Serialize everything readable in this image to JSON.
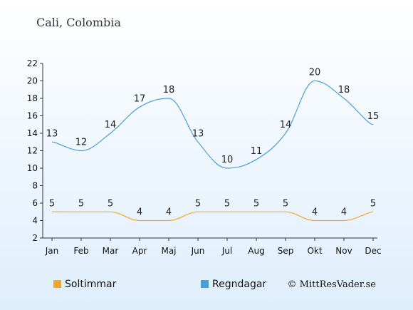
{
  "colors": {
    "background_top": "#ffffff",
    "background_bottom": "#dfeefc",
    "sun": "#f5a623",
    "rain": "#4a9fdb",
    "axis": "#333333"
  },
  "chart_data": {
    "type": "line",
    "title": "Cali, Colombia",
    "categories": [
      "Jan",
      "Feb",
      "Mar",
      "Apr",
      "Maj",
      "Jun",
      "Jul",
      "Aug",
      "Sep",
      "Okt",
      "Nov",
      "Dec"
    ],
    "ylim": [
      2,
      22
    ],
    "yticks": [
      "2",
      "4",
      "6",
      "8",
      "10",
      "12",
      "14",
      "16",
      "18",
      "20",
      "22"
    ],
    "grid": false,
    "legend_position": "bottom-left",
    "series": [
      {
        "name": "Soltimmar",
        "color_key": "sun",
        "values": [
          5,
          5,
          5,
          4,
          4,
          5,
          5,
          5,
          5,
          4,
          4,
          5
        ]
      },
      {
        "name": "Regndagar",
        "color_key": "rain",
        "values": [
          13,
          12,
          14,
          17,
          18,
          13,
          10,
          11,
          14,
          20,
          18,
          15
        ]
      }
    ],
    "credit": "© MittResVader.se"
  }
}
